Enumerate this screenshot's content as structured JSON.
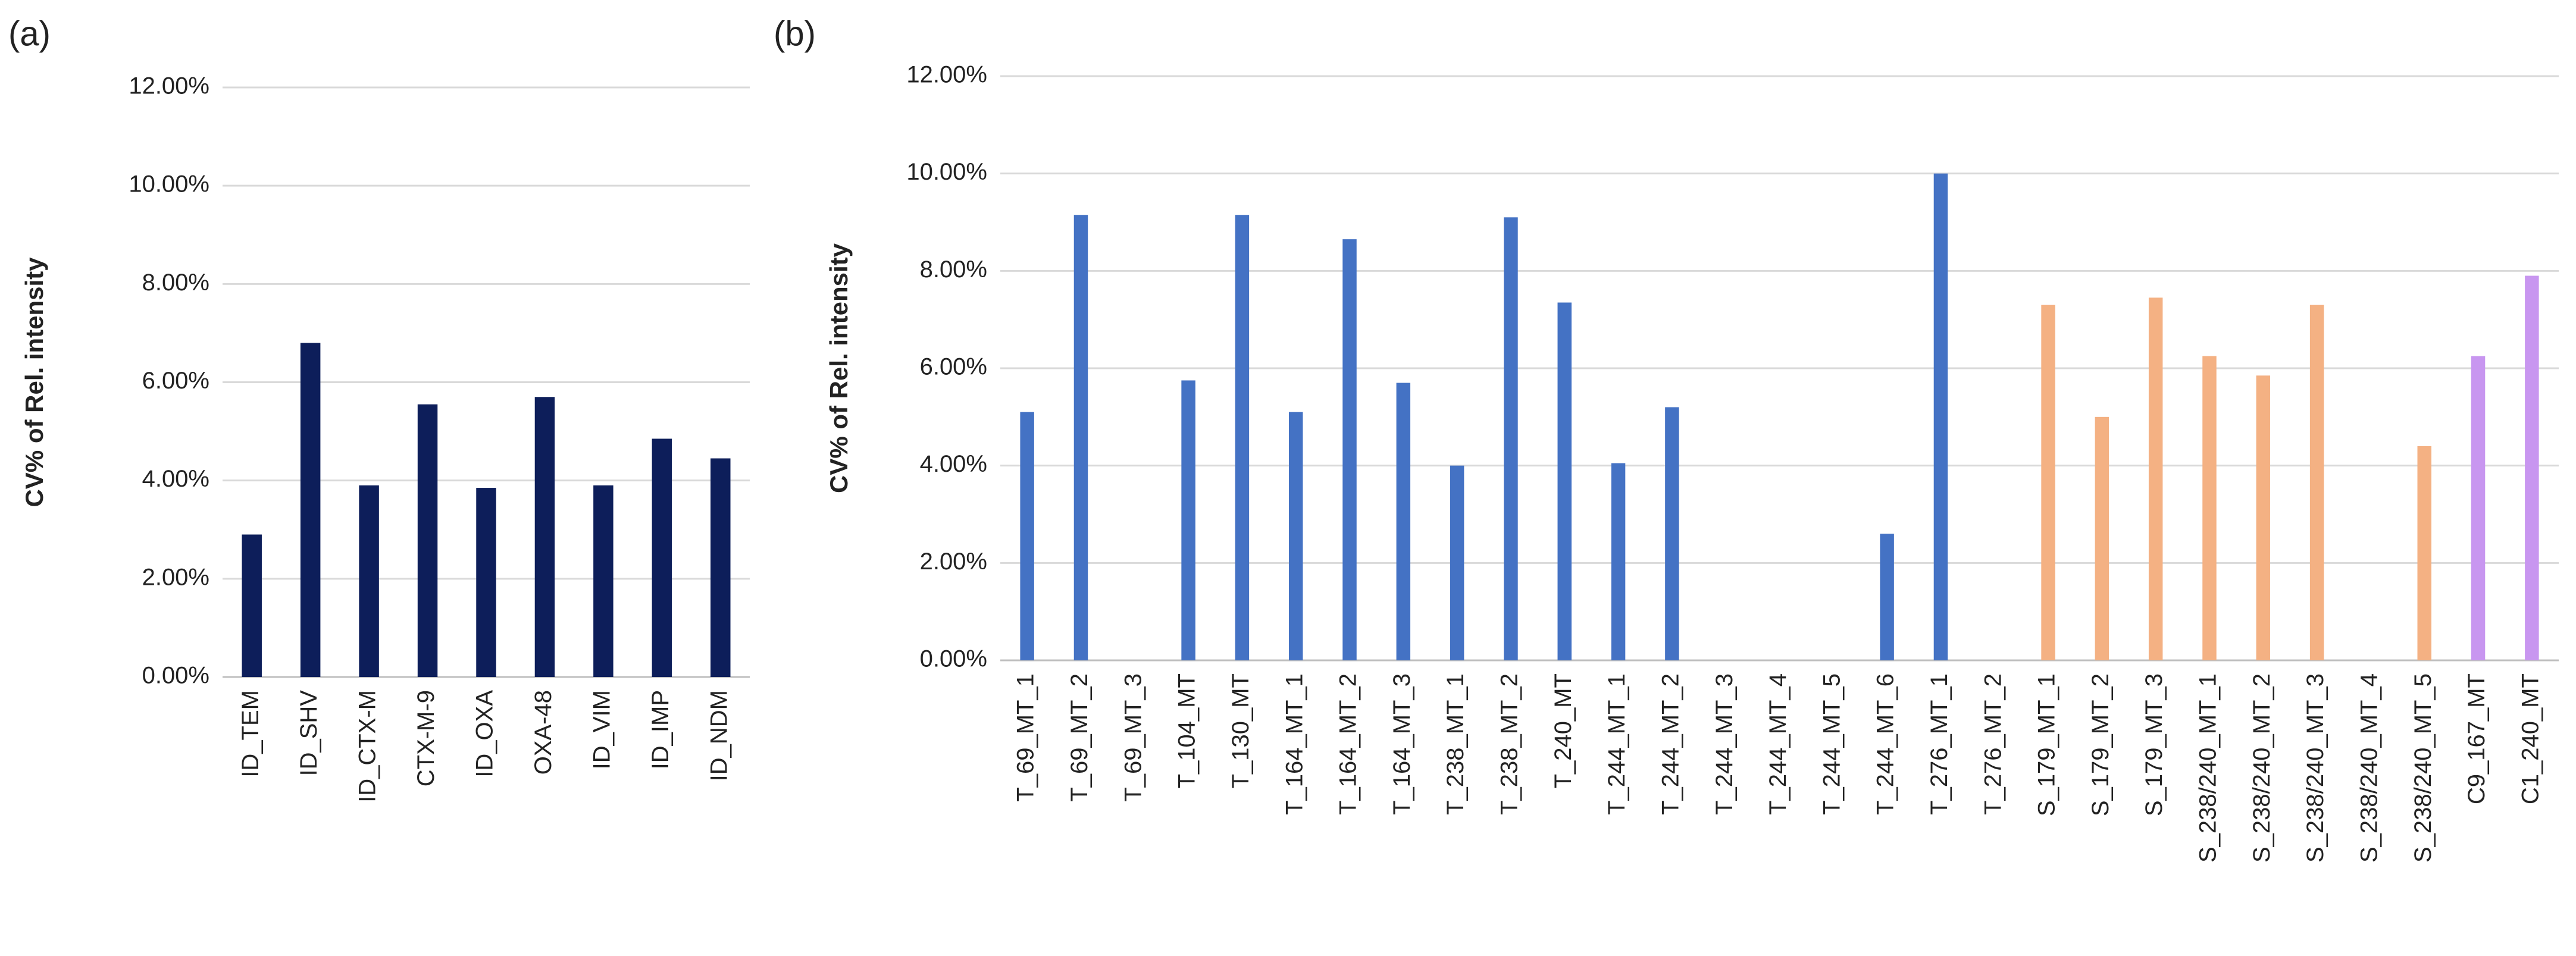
{
  "chart_data": [
    {
      "type": "bar",
      "panel_label": "(a)",
      "y_label": "CV% of Rel. intensity",
      "categories": [
        "ID_TEM",
        "ID_SHV",
        "ID_CTX-M",
        "CTX-M-9",
        "ID_OXA",
        "OXA-48",
        "ID_VIM",
        "ID_IMP",
        "ID_NDM"
      ],
      "values": [
        2.9,
        6.8,
        3.9,
        5.55,
        3.85,
        5.7,
        3.9,
        4.85,
        4.45
      ],
      "colors": [
        "#0d1e5a",
        "#0d1e5a",
        "#0d1e5a",
        "#0d1e5a",
        "#0d1e5a",
        "#0d1e5a",
        "#0d1e5a",
        "#0d1e5a",
        "#0d1e5a"
      ],
      "ylim": [
        0,
        12
      ],
      "yticks": [
        {
          "value": 0,
          "label": "0.00%"
        },
        {
          "value": 2,
          "label": "2.00%"
        },
        {
          "value": 4,
          "label": "4.00%"
        },
        {
          "value": 6,
          "label": "6.00%"
        },
        {
          "value": 8,
          "label": "8.00%"
        },
        {
          "value": 10,
          "label": "10.00%"
        },
        {
          "value": 12,
          "label": "12.00%"
        }
      ],
      "grid": true
    },
    {
      "type": "bar",
      "panel_label": "(b)",
      "y_label": "CV% of Rel. intensity",
      "categories": [
        "T_69_MT_1",
        "T_69_MT_2",
        "T_69_MT_3",
        "T_104_MT",
        "T_130_MT",
        "T_164_MT_1",
        "T_164_MT_2",
        "T_164_MT_3",
        "T_238_MT_1",
        "T_238_MT_2",
        "T_240_MT",
        "T_244_MT_1",
        "T_244_MT_2",
        "T_244_MT_3",
        "T_244_MT_4",
        "T_244_MT_5",
        "T_244_MT_6",
        "T_276_MT_1",
        "T_276_MT_2",
        "S_179_MT_1",
        "S_179_MT_2",
        "S_179_MT_3",
        "S_238/240_MT_1",
        "S_238/240_MT_2",
        "S_238/240_MT_3",
        "S_238/240_MT_4",
        "S_238/240_MT_5",
        "C9_167_MT",
        "C1_240_MT"
      ],
      "values": [
        5.1,
        9.15,
        null,
        5.75,
        9.15,
        5.1,
        8.65,
        5.7,
        4.0,
        9.1,
        7.35,
        4.05,
        5.2,
        null,
        null,
        null,
        2.6,
        10.0,
        null,
        7.3,
        5.0,
        7.45,
        6.25,
        5.85,
        7.3,
        null,
        4.4,
        6.25,
        7.9
      ],
      "colors": [
        "#4472c4",
        "#4472c4",
        "#4472c4",
        "#4472c4",
        "#4472c4",
        "#4472c4",
        "#4472c4",
        "#4472c4",
        "#4472c4",
        "#4472c4",
        "#4472c4",
        "#4472c4",
        "#4472c4",
        "#4472c4",
        "#4472c4",
        "#4472c4",
        "#4472c4",
        "#4472c4",
        "#4472c4",
        "#f4b183",
        "#f4b183",
        "#f4b183",
        "#f4b183",
        "#f4b183",
        "#f4b183",
        "#f4b183",
        "#f4b183",
        "#c896f0",
        "#c896f0"
      ],
      "ylim": [
        0,
        12
      ],
      "yticks": [
        {
          "value": 0,
          "label": "0.00%"
        },
        {
          "value": 2,
          "label": "2.00%"
        },
        {
          "value": 4,
          "label": "4.00%"
        },
        {
          "value": 6,
          "label": "6.00%"
        },
        {
          "value": 8,
          "label": "8.00%"
        },
        {
          "value": 10,
          "label": "10.00%"
        },
        {
          "value": 12,
          "label": "12.00%"
        }
      ],
      "grid": true
    }
  ]
}
